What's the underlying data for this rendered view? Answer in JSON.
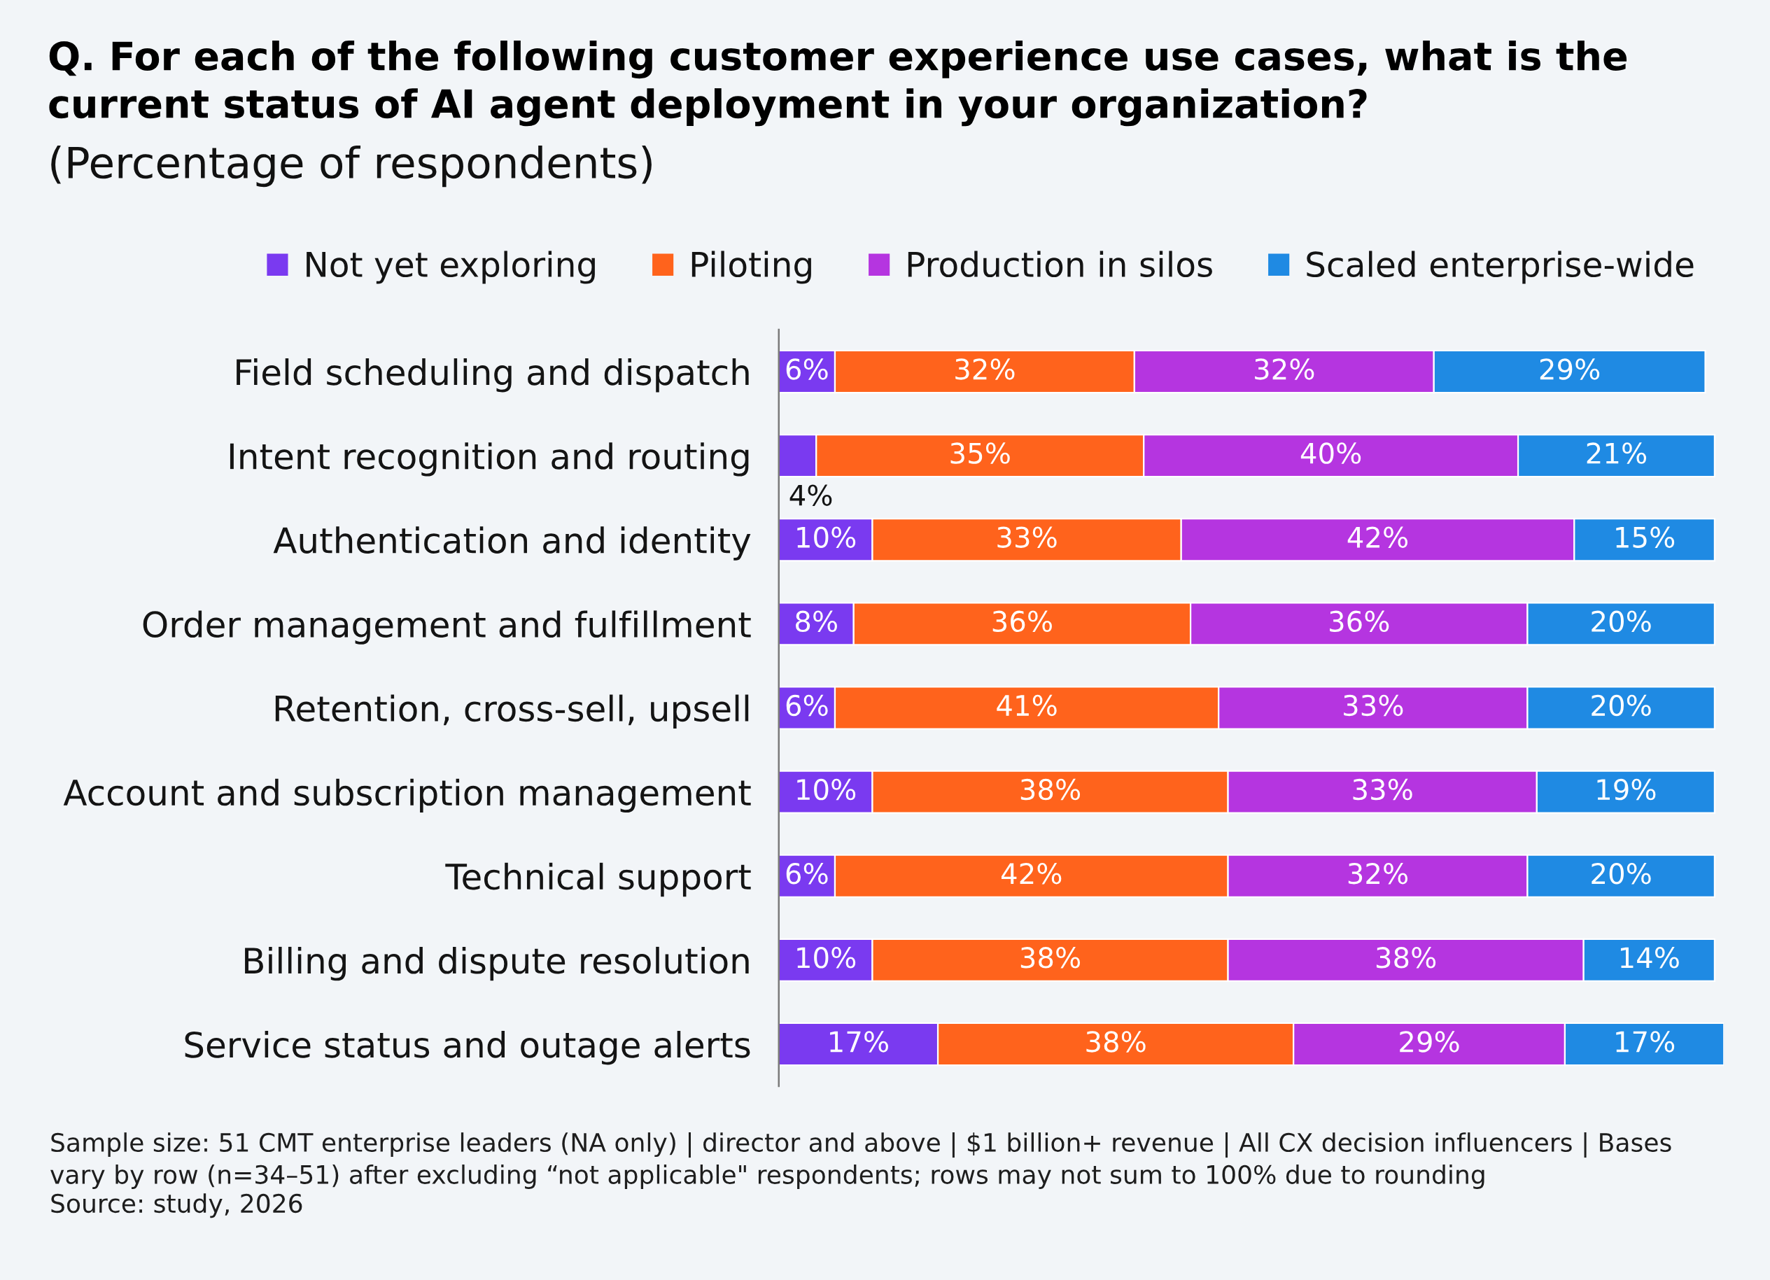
{
  "chart_data": {
    "type": "bar",
    "orientation": "horizontal",
    "stacked": true,
    "title": "Q. For each of the following customer experience use cases, what is the current status of AI agent deployment in your organization?",
    "subtitle": "(Percentage of respondents)",
    "categories": [
      "Field scheduling and dispatch",
      "Intent recognition and routing",
      "Authentication and identity",
      "Order management and fulfillment",
      "Retention, cross-sell, upsell",
      "Account and subscription management",
      "Technical support",
      "Billing and dispute resolution",
      "Service status and outage alerts"
    ],
    "series": [
      {
        "name": "Not yet exploring",
        "color": "#7a3af0",
        "values": [
          6,
          4,
          10,
          8,
          6,
          10,
          6,
          10,
          17
        ],
        "value_labels": [
          "6%",
          "4%",
          "10%",
          "8%",
          "6%",
          "10%",
          "6%",
          "10%",
          "17%"
        ]
      },
      {
        "name": "Piloting",
        "color": "#ff631c",
        "values": [
          32,
          35,
          33,
          36,
          41,
          38,
          42,
          38,
          38
        ],
        "value_labels": [
          "32%",
          "35%",
          "33%",
          "36%",
          "41%",
          "38%",
          "42%",
          "38%",
          "38%"
        ]
      },
      {
        "name": "Production in silos",
        "color": "#b535e0",
        "values": [
          32,
          40,
          42,
          36,
          33,
          33,
          32,
          38,
          29
        ],
        "value_labels": [
          "32%",
          "40%",
          "42%",
          "36%",
          "33%",
          "33%",
          "32%",
          "38%",
          "29%"
        ]
      },
      {
        "name": "Scaled enterprise-wide",
        "color": "#1f8ae3",
        "values": [
          29,
          21,
          15,
          20,
          20,
          19,
          20,
          14,
          17
        ],
        "value_labels": [
          "29%",
          "21%",
          "15%",
          "20%",
          "20%",
          "19%",
          "20%",
          "14%",
          "17%"
        ]
      }
    ],
    "legend": "top",
    "tick_labels": "y",
    "annotations": [
      "Sample size: 51 CMT enterprise leaders (NA only) | director and above | $1 billion+ revenue | All CX decision influencers | Bases vary by row (n=34–51) after excluding “not applicable\" respondents; rows may not sum to 100% due to rounding",
      "Source: study, 2026"
    ]
  }
}
